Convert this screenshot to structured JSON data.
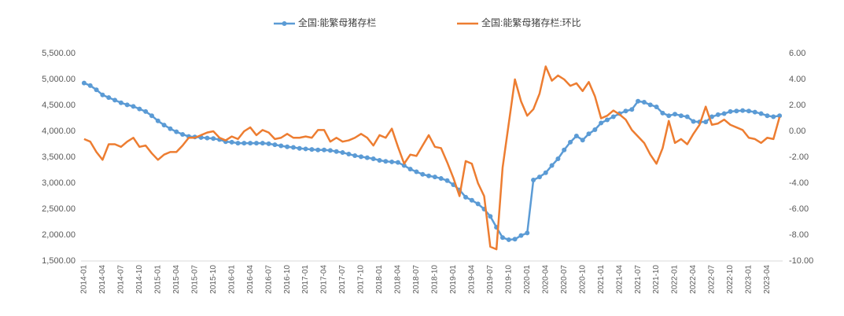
{
  "chart_data": {
    "type": "line",
    "categories": [
      "2014-01",
      null,
      null,
      "2014-04",
      null,
      null,
      "2014-07",
      null,
      null,
      "2014-10",
      null,
      null,
      "2015-01",
      null,
      null,
      "2015-04",
      null,
      null,
      "2015-07",
      null,
      null,
      "2015-10",
      null,
      null,
      "2016-01",
      null,
      null,
      "2016-04",
      null,
      null,
      "2016-07",
      null,
      null,
      "2016-10",
      null,
      null,
      "2017-01",
      null,
      null,
      "2017-04",
      null,
      null,
      "2017-07",
      null,
      null,
      "2017-10",
      null,
      null,
      "2018-01",
      null,
      null,
      "2018-04",
      null,
      null,
      "2018-07",
      null,
      null,
      "2018-10",
      null,
      null,
      "2019-01",
      null,
      null,
      "2019-04",
      null,
      null,
      "2019-07",
      null,
      null,
      "2019-10",
      null,
      null,
      "2020-01",
      null,
      null,
      "2020-04",
      null,
      null,
      "2020-07",
      null,
      null,
      "2020-10",
      null,
      null,
      "2021-01",
      null,
      null,
      "2021-04",
      null,
      null,
      "2021-07",
      null,
      null,
      "2021-10",
      null,
      null,
      "2022-01",
      null,
      null,
      "2022-04",
      null,
      null,
      "2022-07",
      null,
      null,
      "2022-10",
      null,
      null,
      "2023-01",
      null,
      null,
      "2023-04",
      null,
      null
    ],
    "series": [
      {
        "name": "全国:能繁母猪存栏",
        "color": "#5b9bd5",
        "marker": true,
        "values": [
          4930,
          4880,
          4800,
          4700,
          4650,
          4600,
          4550,
          4510,
          4480,
          4430,
          4380,
          4300,
          4200,
          4120,
          4050,
          3990,
          3940,
          3900,
          3890,
          3880,
          3870,
          3860,
          3840,
          3800,
          3790,
          3770,
          3770,
          3770,
          3770,
          3770,
          3760,
          3740,
          3720,
          3700,
          3690,
          3670,
          3660,
          3650,
          3640,
          3640,
          3630,
          3610,
          3590,
          3560,
          3530,
          3510,
          3490,
          3470,
          3440,
          3420,
          3410,
          3400,
          3340,
          3270,
          3220,
          3170,
          3140,
          3120,
          3090,
          3050,
          2970,
          2870,
          2730,
          2670,
          2600,
          2500,
          2360,
          2150,
          1950,
          1910,
          1920,
          1990,
          2040,
          3060,
          3120,
          3200,
          3340,
          3470,
          3640,
          3790,
          3910,
          3830,
          3950,
          4030,
          4160,
          4220,
          4280,
          4340,
          4390,
          4420,
          4580,
          4560,
          4510,
          4470,
          4350,
          4300,
          4330,
          4300,
          4280,
          4190,
          4180,
          4180,
          4280,
          4320,
          4340,
          4380,
          4390,
          4400,
          4390,
          4370,
          4340,
          4300,
          4280,
          4300
        ]
      },
      {
        "name": "全国:能繁母猪存栏:环比",
        "color": "#ed7d31",
        "axis": "y2",
        "marker": false,
        "values": [
          -0.6,
          -0.8,
          -1.6,
          -2.2,
          -1.0,
          -1.0,
          -1.2,
          -0.8,
          -0.5,
          -1.2,
          -1.1,
          -1.7,
          -2.2,
          -1.8,
          -1.6,
          -1.6,
          -1.1,
          -0.5,
          -0.5,
          -0.3,
          -0.1,
          0.0,
          -0.5,
          -0.7,
          -0.4,
          -0.6,
          0.0,
          0.3,
          -0.3,
          0.1,
          -0.1,
          -0.6,
          -0.5,
          -0.2,
          -0.5,
          -0.5,
          -0.4,
          -0.5,
          0.1,
          0.1,
          -0.8,
          -0.5,
          -0.8,
          -0.7,
          -0.5,
          -0.2,
          -0.5,
          -1.1,
          -0.3,
          -0.5,
          0.2,
          -1.2,
          -2.5,
          -1.8,
          -1.9,
          -1.1,
          -0.3,
          -1.2,
          -1.3,
          -2.4,
          -3.6,
          -5.0,
          -2.3,
          -2.5,
          -4.0,
          -5.0,
          -8.9,
          -9.1,
          -2.8,
          0.6,
          4.0,
          2.3,
          1.2,
          1.7,
          2.9,
          5.0,
          3.9,
          4.3,
          4.0,
          3.5,
          3.7,
          3.1,
          3.8,
          2.7,
          1.0,
          1.2,
          1.6,
          1.3,
          0.9,
          0.1,
          -0.4,
          -0.9,
          -1.8,
          -2.5,
          -1.3,
          0.8,
          -0.9,
          -0.6,
          -1.0,
          -0.2,
          0.5,
          1.9,
          0.5,
          0.6,
          0.9,
          0.5,
          0.3,
          0.1,
          -0.5,
          -0.6,
          -0.9,
          -0.5,
          -0.6,
          1.1
        ]
      }
    ],
    "ylim": [
      1500,
      5500
    ],
    "yticks": [
      {
        "value": 1500,
        "label": "1,500.00"
      },
      {
        "value": 2000,
        "label": "2,000.00"
      },
      {
        "value": 2500,
        "label": "2,500.00"
      },
      {
        "value": 3000,
        "label": "3,000.00"
      },
      {
        "value": 3500,
        "label": "3,500.00"
      },
      {
        "value": 4000,
        "label": "4,000.00"
      },
      {
        "value": 4500,
        "label": "4,500.00"
      },
      {
        "value": 5000,
        "label": "5,000.00"
      },
      {
        "value": 5500,
        "label": "5,500.00"
      }
    ],
    "y2lim": [
      -10,
      6
    ],
    "y2ticks": [
      {
        "value": -10,
        "label": "-10.00"
      },
      {
        "value": -8,
        "label": "-8.00"
      },
      {
        "value": -6,
        "label": "-6.00"
      },
      {
        "value": -4,
        "label": "-4.00"
      },
      {
        "value": -2,
        "label": "-2.00"
      },
      {
        "value": 0,
        "label": "0.00"
      },
      {
        "value": 2,
        "label": "2.00"
      },
      {
        "value": 4,
        "label": "4.00"
      },
      {
        "value": 6,
        "label": "6.00"
      }
    ],
    "legend": "top",
    "grid": false
  }
}
